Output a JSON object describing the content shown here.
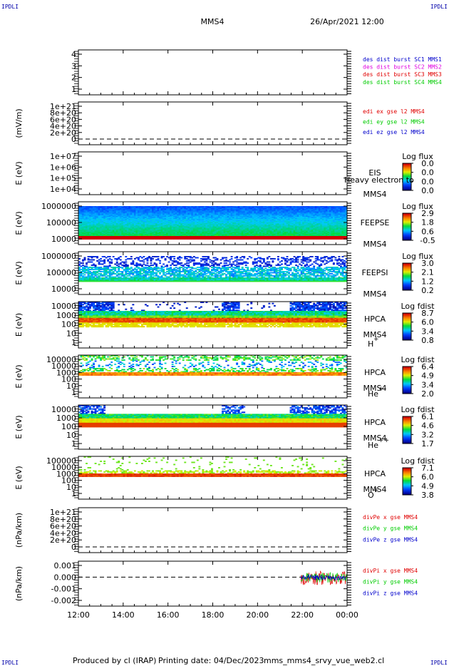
{
  "header": {
    "corner_tl": "IPDLI",
    "corner_tr": "IPDLI",
    "corner_bl": "IPDLI",
    "corner_br": "IPDLI",
    "spacecraft": "MMS4",
    "datetime": "26/Apr/2021 12:00"
  },
  "footer": {
    "produced_by": "Produced by cl (IRAP)",
    "printing_date": "Printing date: 04/Dec/2023",
    "filename": "mms_mms4_srvy_vue_web2.cl"
  },
  "x_ticks": [
    "12:00",
    "14:00",
    "16:00",
    "18:00",
    "20:00",
    "22:00",
    "00:00"
  ],
  "colors": {
    "c_red": "#e00000",
    "c_green": "#00cc00",
    "c_blue": "#0000cc",
    "c_magenta": "#e000e0"
  },
  "chart_data": [
    {
      "type": "line",
      "panel": "burst",
      "yticks": [
        "4",
        "3",
        "2",
        "1"
      ],
      "legend": [
        {
          "text": "des dist burst SC1 MMS1",
          "color": "#0000cc"
        },
        {
          "text": "des dist burst SC2 MMS2",
          "color": "#e000e0"
        },
        {
          "text": "des dist burst SC3 MMS3",
          "color": "#e00000"
        },
        {
          "text": "des dist burst SC4 MMS4",
          "color": "#00cc00"
        }
      ]
    },
    {
      "type": "line",
      "panel": "edi",
      "ylabel": "(mV/m)",
      "yticks": [
        "1e+21",
        "8e+20",
        "6e+20",
        "4e+20",
        "2e+20",
        "0"
      ],
      "legend": [
        {
          "text": "edi ex gse l2 MMS4",
          "color": "#e00000"
        },
        {
          "text": "edi ey gse l2 MMS4",
          "color": "#00cc00"
        },
        {
          "text": "edi ez gse l2 MMS4",
          "color": "#0000cc"
        }
      ]
    },
    {
      "type": "heatmap",
      "panel": "eis",
      "ylabel": "E (eV)",
      "yticks": [
        "1e+07",
        "1e+06",
        "1e+05",
        "1e+04"
      ],
      "labels": [
        "EIS",
        "MMS4"
      ],
      "overlap_text": "Heavy electron to",
      "cbar_title": "Log flux",
      "cbar_ticks": [
        "0.0",
        "0.0",
        "0.0",
        "0.0"
      ]
    },
    {
      "type": "heatmap",
      "panel": "feepse",
      "ylabel": "E (eV)",
      "yticks": [
        "1000000",
        "100000",
        "10000"
      ],
      "labels": [
        "FEEPSE",
        "MMS4"
      ],
      "cbar_title": "Log flux",
      "cbar_ticks": [
        "2.9",
        "1.8",
        "0.6",
        "-0.5"
      ]
    },
    {
      "type": "heatmap",
      "panel": "feepsi",
      "ylabel": "E (eV)",
      "yticks": [
        "1000000",
        "100000",
        "10000"
      ],
      "labels": [
        "FEEPSI",
        "MMS4"
      ],
      "cbar_title": "Log flux",
      "cbar_ticks": [
        "3.0",
        "2.1",
        "1.2",
        "0.2"
      ]
    },
    {
      "type": "heatmap",
      "panel": "hpca_h",
      "ylabel": "E (eV)",
      "yticks": [
        "10000",
        "1000",
        "100",
        "10",
        "1"
      ],
      "labels": [
        "HPCA",
        "MMS4"
      ],
      "species": "H",
      "species_sup": "+",
      "cbar_title": "Log fdist",
      "cbar_ticks": [
        "8.7",
        "6.0",
        "3.4",
        "0.8"
      ]
    },
    {
      "type": "heatmap",
      "panel": "hpca_he",
      "ylabel": "E (eV)",
      "yticks": [
        "100000",
        "10000",
        "1000",
        "100",
        "10",
        "1"
      ],
      "labels": [
        "HPCA",
        "MMS4"
      ],
      "species": "He",
      "species_sup": "+",
      "cbar_title": "Log fdist",
      "cbar_ticks": [
        "6.4",
        "4.9",
        "3.4",
        "2.0"
      ]
    },
    {
      "type": "heatmap",
      "panel": "hpca_hepp",
      "ylabel": "E (eV)",
      "yticks": [
        "10000",
        "1000",
        "100",
        "10",
        "1"
      ],
      "labels": [
        "HPCA",
        "MMS4"
      ],
      "species": "He",
      "species_sup": "++",
      "cbar_title": "Log fdist",
      "cbar_ticks": [
        "6.1",
        "4.6",
        "3.2",
        "1.7"
      ]
    },
    {
      "type": "heatmap",
      "panel": "hpca_o",
      "ylabel": "E (eV)",
      "yticks": [
        "100000",
        "10000",
        "1000",
        "100",
        "10",
        "1"
      ],
      "labels": [
        "HPCA",
        "MMS4"
      ],
      "species": "O",
      "species_sup": "+",
      "cbar_title": "Log fdist",
      "cbar_ticks": [
        "7.1",
        "6.0",
        "4.9",
        "3.8"
      ]
    },
    {
      "type": "line",
      "panel": "divpe",
      "ylabel": "(nPa/km)",
      "yticks": [
        "1e+21",
        "8e+20",
        "6e+20",
        "4e+20",
        "2e+20",
        "0"
      ],
      "legend": [
        {
          "text": "divPe x gse MMS4",
          "color": "#e00000"
        },
        {
          "text": "divPe y gse MMS4",
          "color": "#00cc00"
        },
        {
          "text": "divPe z gse MMS4",
          "color": "#0000cc"
        }
      ]
    },
    {
      "type": "line",
      "panel": "divpi",
      "ylabel": "(nPa/km)",
      "yticks": [
        "0.001",
        "0.000",
        "-0.001",
        "-0.002"
      ],
      "ylim": [
        -0.0025,
        0.0015
      ],
      "data_start": "22:00",
      "data_end": "00:00",
      "legend": [
        {
          "text": "divPi x gse MMS4",
          "color": "#e00000"
        },
        {
          "text": "divPi y gse MMS4",
          "color": "#00cc00"
        },
        {
          "text": "divPi z gse MMS4",
          "color": "#0000cc"
        }
      ]
    }
  ]
}
